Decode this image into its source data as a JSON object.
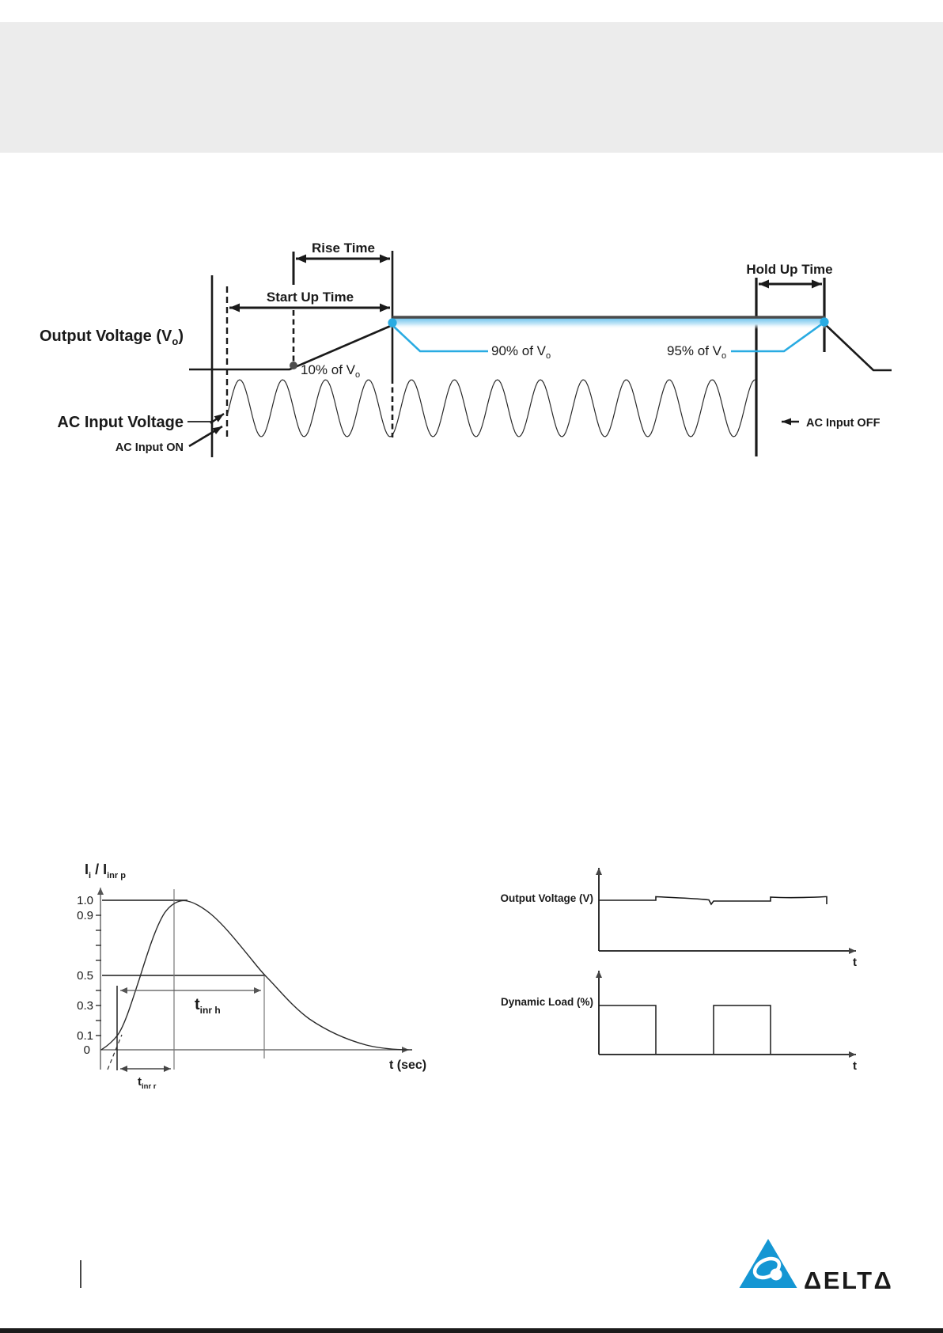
{
  "timing_diagram": {
    "labels": {
      "rise_time": "Rise Time",
      "start_up_time": "Start Up Time",
      "hold_up_time": "Hold Up Time",
      "output_voltage_main": "Output Voltage (V",
      "output_voltage_sub": "o",
      "output_voltage_end": ")",
      "ac_input_voltage": "AC Input Voltage",
      "ac_input_on": "AC Input ON",
      "ac_input_off": "AC Input OFF",
      "pct_10_main": "10% of V",
      "pct_10_sub": "o",
      "pct_90_main": "90% of V",
      "pct_90_sub": "o",
      "pct_95_main": "95% of V",
      "pct_95_sub": "o"
    },
    "colors": {
      "accent_blue": "#29abe2",
      "plateau_band_blue": "#7ac7ee",
      "plateau_top_gray": "#4a4a4a",
      "line_black": "#1a1a1a",
      "header_band_gray": "#ececec"
    }
  },
  "inrush_chart": {
    "title": {
      "i_main": "I",
      "i_main_sub": "i",
      "i_peak": " / I",
      "i_peak_sub": "inr p"
    },
    "y_axis_labels": [
      "1.0",
      "0.9",
      "0.5",
      "0.3",
      "0.1",
      "0"
    ],
    "x_axis_label": "t (sec)",
    "markers": {
      "t_half_main": "t",
      "t_half_sub": "inr h",
      "t_rise_main": "t",
      "t_rise_sub": "inr r"
    }
  },
  "load_transient_charts": {
    "voltage_chart_label": "Output Voltage (V)",
    "load_chart_label": "Dynamic Load (%)",
    "voltage_time_label": "t",
    "load_time_label": "t"
  },
  "footer": {
    "brand": "DELTA",
    "wordmark": "ΔELTΔ"
  },
  "chart_data": [
    {
      "type": "line",
      "title": "Ii / Iinr p",
      "xlabel": "t (sec)",
      "ylabel": "Ii / Iinr p",
      "ylim": [
        0,
        1.1
      ],
      "yticks_labeled": [
        0,
        0.1,
        0.3,
        0.5,
        0.9,
        1.0
      ],
      "series": [
        {
          "name": "normalized inrush current",
          "shape": "rises from 0, straight steep rise through 0.1 and 0.5, peak at 1.0, exponential decay back toward 0",
          "annotations": [
            "t inr r = rise time span measured at tangent crossing of 0.1",
            "t inr h = duration above 0.5 of peak"
          ]
        }
      ],
      "legend": "none",
      "grid": false
    },
    {
      "type": "line",
      "title": "Output Voltage (V)",
      "xlabel": "t",
      "series": [
        {
          "name": "output voltage",
          "shape": "flat nominal level with small overshoot/undershoot transients at each load step edge"
        }
      ],
      "legend": "none",
      "grid": false
    },
    {
      "type": "line",
      "title": "Dynamic Load (%)",
      "xlabel": "t",
      "series": [
        {
          "name": "dynamic load",
          "shape": "two rectangular pulses: high-low-high-low square wave starting at the y-axis"
        }
      ],
      "legend": "none",
      "grid": false
    }
  ]
}
